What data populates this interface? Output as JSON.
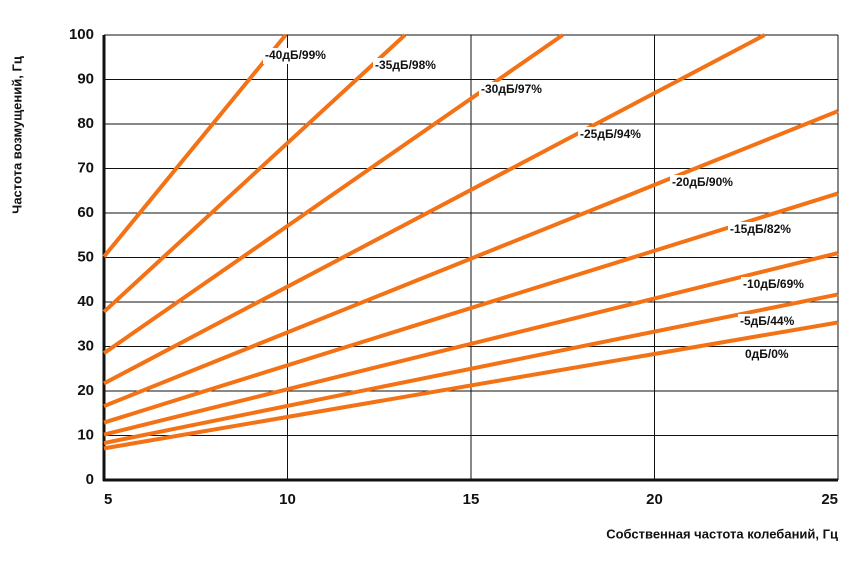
{
  "chart_data": {
    "type": "line",
    "x_label": "Собственная частота колебаний, Гц",
    "y_label": "Частота возмущений, Гц",
    "xlim": [
      5,
      25
    ],
    "xticks": [
      5,
      10,
      15,
      20,
      25
    ],
    "ylim": [
      0,
      100
    ],
    "yticks": [
      0,
      10,
      20,
      30,
      40,
      50,
      60,
      70,
      80,
      90,
      100
    ],
    "grid": true,
    "color": "#f47216",
    "series": [
      {
        "name": "-40дБ/99%",
        "x": [
          5,
          9.95
        ],
        "values": [
          50.2,
          100
        ]
      },
      {
        "name": "-35дБ/98%",
        "x": [
          5,
          13.2
        ],
        "values": [
          37.8,
          100
        ]
      },
      {
        "name": "-30дБ/97%",
        "x": [
          5,
          17.5
        ],
        "values": [
          28.5,
          100
        ]
      },
      {
        "name": "-25дБ/94%",
        "x": [
          5,
          23.0
        ],
        "values": [
          21.7,
          100
        ]
      },
      {
        "name": "-20дБ/90%",
        "x": [
          5,
          25
        ],
        "values": [
          16.6,
          82.9
        ]
      },
      {
        "name": "-15дБ/82%",
        "x": [
          5,
          25
        ],
        "values": [
          12.9,
          64.4
        ]
      },
      {
        "name": "-10дБ/69%",
        "x": [
          5,
          25
        ],
        "values": [
          10.2,
          51.0
        ]
      },
      {
        "name": "-5дБ/44%",
        "x": [
          5,
          25
        ],
        "values": [
          8.3,
          41.7
        ]
      },
      {
        "name": "0дБ/0%",
        "x": [
          5,
          25
        ],
        "values": [
          7.1,
          35.4
        ]
      }
    ]
  }
}
